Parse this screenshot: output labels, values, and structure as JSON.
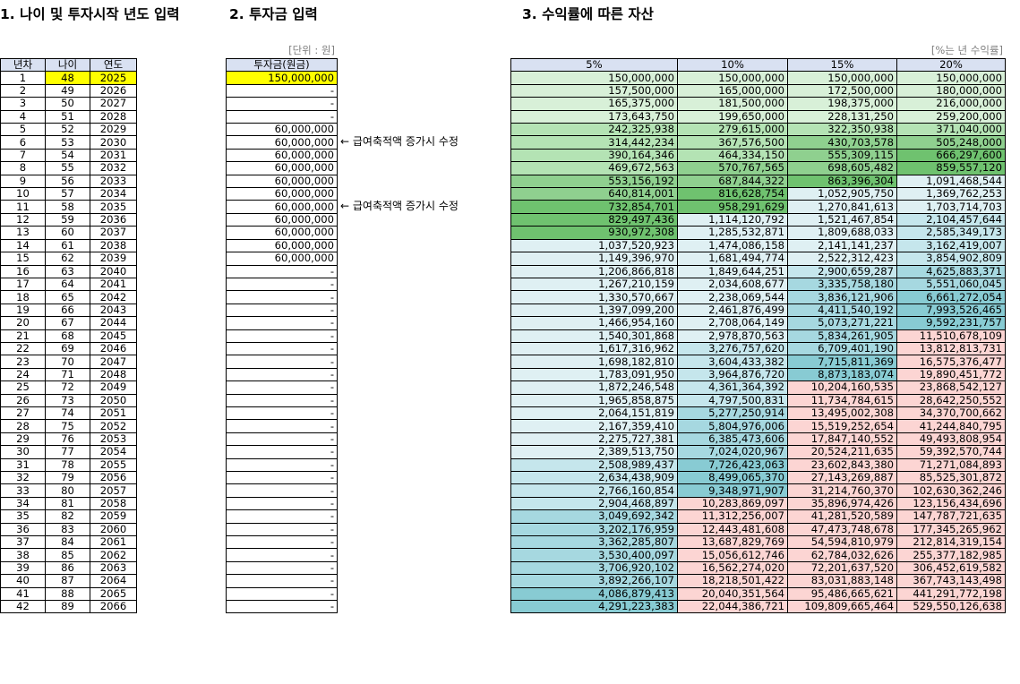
{
  "headings": {
    "section1": "1. 나이 및 투자시작 년도 입력",
    "section2": "2. 투자금 입력",
    "section3": "3. 수익률에 따른 자산"
  },
  "unit_labels": {
    "won": "[단위 : 원]",
    "rate": "[%는 년 수익률]"
  },
  "table1": {
    "headers": [
      "년차",
      "나이",
      "연도"
    ],
    "rows": [
      [
        "1",
        "48",
        "2025"
      ],
      [
        "2",
        "49",
        "2026"
      ],
      [
        "3",
        "50",
        "2027"
      ],
      [
        "4",
        "51",
        "2028"
      ],
      [
        "5",
        "52",
        "2029"
      ],
      [
        "6",
        "53",
        "2030"
      ],
      [
        "7",
        "54",
        "2031"
      ],
      [
        "8",
        "55",
        "2032"
      ],
      [
        "9",
        "56",
        "2033"
      ],
      [
        "10",
        "57",
        "2034"
      ],
      [
        "11",
        "58",
        "2035"
      ],
      [
        "12",
        "59",
        "2036"
      ],
      [
        "13",
        "60",
        "2037"
      ],
      [
        "14",
        "61",
        "2038"
      ],
      [
        "15",
        "62",
        "2039"
      ],
      [
        "16",
        "63",
        "2040"
      ],
      [
        "17",
        "64",
        "2041"
      ],
      [
        "18",
        "65",
        "2042"
      ],
      [
        "19",
        "66",
        "2043"
      ],
      [
        "20",
        "67",
        "2044"
      ],
      [
        "21",
        "68",
        "2045"
      ],
      [
        "22",
        "69",
        "2046"
      ],
      [
        "23",
        "70",
        "2047"
      ],
      [
        "24",
        "71",
        "2048"
      ],
      [
        "25",
        "72",
        "2049"
      ],
      [
        "26",
        "73",
        "2050"
      ],
      [
        "27",
        "74",
        "2051"
      ],
      [
        "28",
        "75",
        "2052"
      ],
      [
        "29",
        "76",
        "2053"
      ],
      [
        "30",
        "77",
        "2054"
      ],
      [
        "31",
        "78",
        "2055"
      ],
      [
        "32",
        "79",
        "2056"
      ],
      [
        "33",
        "80",
        "2057"
      ],
      [
        "34",
        "81",
        "2058"
      ],
      [
        "35",
        "82",
        "2059"
      ],
      [
        "36",
        "83",
        "2060"
      ],
      [
        "37",
        "84",
        "2061"
      ],
      [
        "38",
        "85",
        "2062"
      ],
      [
        "39",
        "86",
        "2063"
      ],
      [
        "40",
        "87",
        "2064"
      ],
      [
        "41",
        "88",
        "2065"
      ],
      [
        "42",
        "89",
        "2066"
      ]
    ]
  },
  "table2": {
    "header": "투자금(원금)",
    "values": [
      "150,000,000",
      "-",
      "-",
      "-",
      "60,000,000",
      "60,000,000",
      "60,000,000",
      "60,000,000",
      "60,000,000",
      "60,000,000",
      "60,000,000",
      "60,000,000",
      "60,000,000",
      "60,000,000",
      "60,000,000",
      "-",
      "-",
      "-",
      "-",
      "-",
      "-",
      "-",
      "-",
      "-",
      "-",
      "-",
      "-",
      "-",
      "-",
      "-",
      "-",
      "-",
      "-",
      "-",
      "-",
      "-",
      "-",
      "-",
      "-",
      "-",
      "-",
      "-"
    ]
  },
  "notes": [
    {
      "row": 6,
      "text": "← 급여축적액 증가시 수정"
    },
    {
      "row": 11,
      "text": "← 급여축적액 증가시 수정"
    }
  ],
  "table3": {
    "headers": [
      "5%",
      "10%",
      "15%",
      "20%"
    ],
    "rows": [
      [
        "150,000,000",
        "150,000,000",
        "150,000,000",
        "150,000,000"
      ],
      [
        "157,500,000",
        "165,000,000",
        "172,500,000",
        "180,000,000"
      ],
      [
        "165,375,000",
        "181,500,000",
        "198,375,000",
        "216,000,000"
      ],
      [
        "173,643,750",
        "199,650,000",
        "228,131,250",
        "259,200,000"
      ],
      [
        "242,325,938",
        "279,615,000",
        "322,350,938",
        "371,040,000"
      ],
      [
        "314,442,234",
        "367,576,500",
        "430,703,578",
        "505,248,000"
      ],
      [
        "390,164,346",
        "464,334,150",
        "555,309,115",
        "666,297,600"
      ],
      [
        "469,672,563",
        "570,767,565",
        "698,605,482",
        "859,557,120"
      ],
      [
        "553,156,192",
        "687,844,322",
        "863,396,304",
        "1,091,468,544"
      ],
      [
        "640,814,001",
        "816,628,754",
        "1,052,905,750",
        "1,369,762,253"
      ],
      [
        "732,854,701",
        "958,291,629",
        "1,270,841,613",
        "1,703,714,703"
      ],
      [
        "829,497,436",
        "1,114,120,792",
        "1,521,467,854",
        "2,104,457,644"
      ],
      [
        "930,972,308",
        "1,285,532,871",
        "1,809,688,033",
        "2,585,349,173"
      ],
      [
        "1,037,520,923",
        "1,474,086,158",
        "2,141,141,237",
        "3,162,419,007"
      ],
      [
        "1,149,396,970",
        "1,681,494,774",
        "2,522,312,423",
        "3,854,902,809"
      ],
      [
        "1,206,866,818",
        "1,849,644,251",
        "2,900,659,287",
        "4,625,883,371"
      ],
      [
        "1,267,210,159",
        "2,034,608,677",
        "3,335,758,180",
        "5,551,060,045"
      ],
      [
        "1,330,570,667",
        "2,238,069,544",
        "3,836,121,906",
        "6,661,272,054"
      ],
      [
        "1,397,099,200",
        "2,461,876,499",
        "4,411,540,192",
        "7,993,526,465"
      ],
      [
        "1,466,954,160",
        "2,708,064,149",
        "5,073,271,221",
        "9,592,231,757"
      ],
      [
        "1,540,301,868",
        "2,978,870,563",
        "5,834,261,905",
        "11,510,678,109"
      ],
      [
        "1,617,316,962",
        "3,276,757,620",
        "6,709,401,190",
        "13,812,813,731"
      ],
      [
        "1,698,182,810",
        "3,604,433,382",
        "7,715,811,369",
        "16,575,376,477"
      ],
      [
        "1,783,091,950",
        "3,964,876,720",
        "8,873,183,074",
        "19,890,451,772"
      ],
      [
        "1,872,246,548",
        "4,361,364,392",
        "10,204,160,535",
        "23,868,542,127"
      ],
      [
        "1,965,858,875",
        "4,797,500,831",
        "11,734,784,615",
        "28,642,250,552"
      ],
      [
        "2,064,151,819",
        "5,277,250,914",
        "13,495,002,308",
        "34,370,700,662"
      ],
      [
        "2,167,359,410",
        "5,804,976,006",
        "15,519,252,654",
        "41,244,840,795"
      ],
      [
        "2,275,727,381",
        "6,385,473,606",
        "17,847,140,552",
        "49,493,808,954"
      ],
      [
        "2,389,513,750",
        "7,024,020,967",
        "20,524,211,635",
        "59,392,570,744"
      ],
      [
        "2,508,989,437",
        "7,726,423,063",
        "23,602,843,380",
        "71,271,084,893"
      ],
      [
        "2,634,438,909",
        "8,499,065,370",
        "27,143,269,887",
        "85,525,301,872"
      ],
      [
        "2,766,160,854",
        "9,348,971,907",
        "31,214,760,370",
        "102,630,362,246"
      ],
      [
        "2,904,468,897",
        "10,283,869,097",
        "35,896,974,426",
        "123,156,434,696"
      ],
      [
        "3,049,692,342",
        "11,312,256,007",
        "41,281,520,589",
        "147,787,721,635"
      ],
      [
        "3,202,176,959",
        "12,443,481,608",
        "47,473,748,678",
        "177,345,265,962"
      ],
      [
        "3,362,285,807",
        "13,687,829,769",
        "54,594,810,979",
        "212,814,319,154"
      ],
      [
        "3,530,400,097",
        "15,056,612,746",
        "62,784,032,626",
        "255,377,182,985"
      ],
      [
        "3,706,920,102",
        "16,562,274,020",
        "72,201,637,520",
        "306,452,619,582"
      ],
      [
        "3,892,266,107",
        "18,218,501,422",
        "83,031,883,148",
        "367,743,143,498"
      ],
      [
        "4,086,879,413",
        "20,040,351,564",
        "95,486,665,621",
        "441,291,772,198"
      ],
      [
        "4,291,223,383",
        "22,044,386,721",
        "109,809,665,464",
        "529,550,126,638"
      ]
    ],
    "colors": [
      [
        "p1",
        "p1",
        "p1",
        "p1"
      ],
      [
        "p1",
        "p1",
        "p1",
        "p1"
      ],
      [
        "p1",
        "p1",
        "p1",
        "p1"
      ],
      [
        "p1",
        "p1",
        "p1",
        "p1"
      ],
      [
        "p2",
        "p2",
        "p2",
        "p2"
      ],
      [
        "p2",
        "p2",
        "p3",
        "p3"
      ],
      [
        "p2",
        "p2",
        "p3",
        "p4"
      ],
      [
        "p2",
        "p3",
        "p3",
        "p4"
      ],
      [
        "p3",
        "p3",
        "p4",
        "t1"
      ],
      [
        "p3",
        "p4",
        "t1",
        "t1"
      ],
      [
        "p4",
        "p4",
        "t1",
        "t1"
      ],
      [
        "p4",
        "t1",
        "t1",
        "t2"
      ],
      [
        "p4",
        "t1",
        "t1",
        "t2"
      ],
      [
        "t1",
        "t1",
        "t1",
        "t2"
      ],
      [
        "t1",
        "t1",
        "t1",
        "t2"
      ],
      [
        "t1",
        "t1",
        "t2",
        "t3"
      ],
      [
        "t1",
        "t1",
        "t3",
        "t3"
      ],
      [
        "t1",
        "t1",
        "t3",
        "t4"
      ],
      [
        "t1",
        "t1",
        "t3",
        "t4"
      ],
      [
        "t1",
        "t1",
        "t3",
        "t4"
      ],
      [
        "t1",
        "t1",
        "t3",
        "k1"
      ],
      [
        "t1",
        "t2",
        "t3",
        "k1"
      ],
      [
        "t1",
        "t2",
        "t4",
        "k1"
      ],
      [
        "t1",
        "t2",
        "t4",
        "k1"
      ],
      [
        "t1",
        "t2",
        "k1",
        "k1"
      ],
      [
        "t1",
        "t2",
        "k1",
        "k1"
      ],
      [
        "t1",
        "t3",
        "k1",
        "k1"
      ],
      [
        "t1",
        "t3",
        "k1",
        "k1"
      ],
      [
        "t1",
        "t3",
        "k1",
        "k1"
      ],
      [
        "t1",
        "t3",
        "k1",
        "k1"
      ],
      [
        "t2",
        "t4",
        "k1",
        "k1"
      ],
      [
        "t2",
        "t4",
        "k1",
        "k1"
      ],
      [
        "t2",
        "t4",
        "k1",
        "k1"
      ],
      [
        "t2",
        "k1",
        "k1",
        "k1"
      ],
      [
        "t3",
        "k1",
        "k1",
        "k1"
      ],
      [
        "t3",
        "k1",
        "k1",
        "k1"
      ],
      [
        "t3",
        "k1",
        "k1",
        "k1"
      ],
      [
        "t3",
        "k1",
        "k1",
        "k1"
      ],
      [
        "t3",
        "k1",
        "k1",
        "k1"
      ],
      [
        "t3",
        "k1",
        "k1",
        "k1"
      ],
      [
        "t4",
        "k1",
        "k1",
        "k1"
      ],
      [
        "t4",
        "k1",
        "k1",
        "k1"
      ]
    ]
  },
  "colors": {
    "header_fill": "#d9e1f2",
    "input_highlight": "#ffff00",
    "green_scale": [
      "#d8f0d8",
      "#b4e3b4",
      "#8fd08f",
      "#6fc26f"
    ],
    "teal_scale": [
      "#dff0f3",
      "#c5e6ec",
      "#a6d8e0",
      "#88cbd3"
    ],
    "pink": "#fcd5d3"
  }
}
